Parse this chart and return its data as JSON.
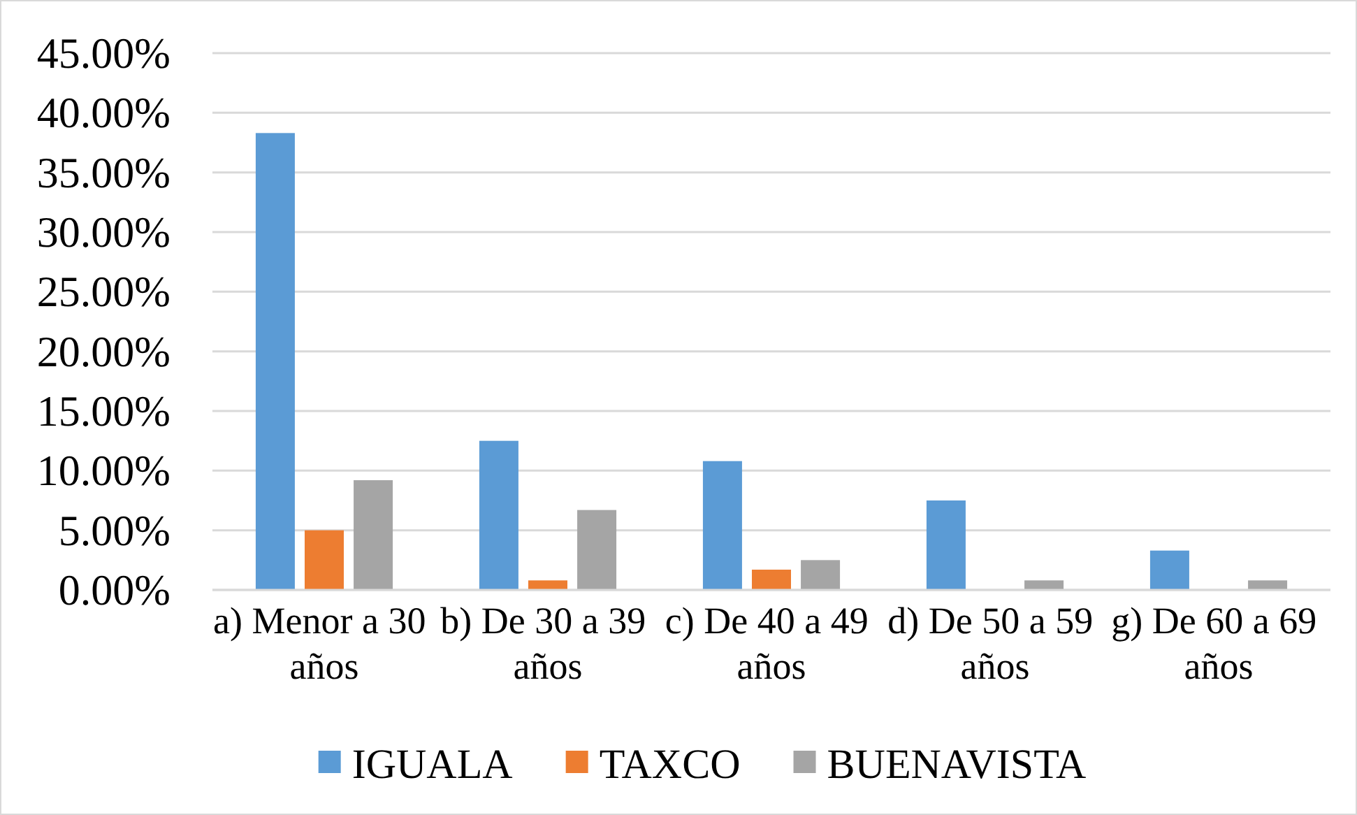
{
  "chart_data": {
    "type": "bar",
    "categories": [
      "a) Menor a 30 años",
      "b) De 30 a 39 años",
      "c) De 40 a 49 años",
      "d) De 50 a 59 años",
      "g) De 60 a 69 años"
    ],
    "series": [
      {
        "name": "IGUALA",
        "color": "#5b9bd5",
        "values": [
          38.3,
          12.5,
          10.8,
          7.5,
          3.3
        ]
      },
      {
        "name": "TAXCO",
        "color": "#ed7d31",
        "values": [
          5.0,
          0.8,
          1.7,
          null,
          null
        ]
      },
      {
        "name": "BUENAVISTA",
        "color": "#a5a5a5",
        "values": [
          9.2,
          6.7,
          2.5,
          0.8,
          0.8
        ]
      }
    ],
    "ylim": [
      0,
      45
    ],
    "yticks": [
      {
        "value": 0,
        "label": "0.00%"
      },
      {
        "value": 5,
        "label": "5.00%"
      },
      {
        "value": 10,
        "label": "10.00%"
      },
      {
        "value": 15,
        "label": "15.00%"
      },
      {
        "value": 20,
        "label": "20.00%"
      },
      {
        "value": 25,
        "label": "25.00%"
      },
      {
        "value": 30,
        "label": "30.00%"
      },
      {
        "value": 35,
        "label": "35.00%"
      },
      {
        "value": 40,
        "label": "40.00%"
      },
      {
        "value": 45,
        "label": "45.00%"
      }
    ],
    "grid": "y",
    "legend": "bottom"
  }
}
